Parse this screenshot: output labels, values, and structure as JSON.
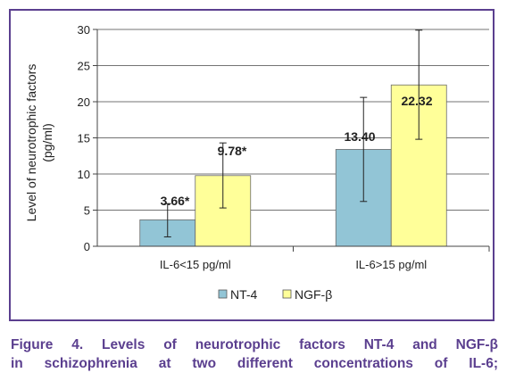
{
  "chart_data": {
    "type": "bar",
    "categories": [
      "IL-6<15 pg/ml",
      "IL-6>15 pg/ml"
    ],
    "series": [
      {
        "name": "NT-4",
        "color": "#92c5d6",
        "values": [
          3.66,
          13.4
        ],
        "labels": [
          "3.66*",
          "13.40"
        ],
        "error_low": [
          1.3,
          6.2
        ],
        "error_high": [
          5.9,
          20.6
        ]
      },
      {
        "name": "NGF-β",
        "color": "#ffff99",
        "values": [
          9.78,
          22.32
        ],
        "labels": [
          "9.78*",
          "22.32"
        ],
        "error_low": [
          5.3,
          14.8
        ],
        "error_high": [
          14.3,
          29.9
        ]
      }
    ],
    "ylabel_lines": [
      "Level of neurotrophic factors",
      "(pg/ml)"
    ],
    "ylim": [
      0,
      30
    ],
    "yticks": [
      "0",
      "5",
      "10",
      "15",
      "20",
      "25",
      "30"
    ],
    "grid": true,
    "legend_position": "bottom"
  },
  "caption": {
    "line1": "Figure 4. Levels of neurotrophic factors NT-4 and NGF-β",
    "line2": "in schizophrenia at two different concentrations of IL-6;"
  }
}
